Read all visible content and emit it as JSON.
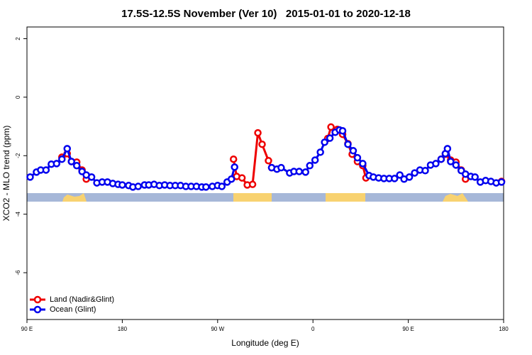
{
  "chart_data": {
    "type": "line",
    "title": "17.5S-12.5S November (Ver 10)   2015-01-01 to 2020-12-18",
    "x_label": "Longitude (deg E)",
    "y_label": "XCO2 - MLO trend (ppm)",
    "xlim": [
      90,
      540
    ],
    "xticks": [
      {
        "value": 90,
        "label": "90 E"
      },
      180,
      {
        "value": 270,
        "label": "90 W"
      },
      {
        "value": 360,
        "label": "0"
      },
      {
        "value": 450,
        "label": "90 E"
      },
      {
        "value": 540,
        "label": "180"
      }
    ],
    "ylim": [
      -7.6,
      2.4
    ],
    "yticks": [
      -6,
      -4,
      -2,
      0,
      2
    ],
    "legend": "bottom-left",
    "series": [
      {
        "name": "Land (Nadir&Glint)",
        "color": "#ee0000",
        "x": [
          123,
          128,
          132,
          137,
          142,
          146,
          200,
          285,
          288,
          293,
          298,
          303,
          308,
          312,
          318,
          321,
          340,
          374,
          377,
          383,
          388,
          393,
          397,
          402,
          407,
          410,
          450,
          481,
          485,
          490,
          495,
          500,
          504,
          520,
          538
        ],
        "values": [
          -2.05,
          -1.93,
          -2.2,
          -2.22,
          -2.49,
          -2.8,
          null,
          -2.12,
          -2.71,
          -2.76,
          -3.0,
          -2.98,
          -1.22,
          -1.61,
          -2.17,
          -2.41,
          null,
          -1.41,
          -1.02,
          -1.1,
          -1.27,
          -1.59,
          -1.95,
          -2.2,
          -2.34,
          -2.76,
          null,
          -2.12,
          -1.95,
          -2.15,
          -2.22,
          -2.49,
          -2.8,
          null,
          -2.88
        ]
      },
      {
        "name": "Ocean (Glint)",
        "color": "#0000ee",
        "x": [
          93,
          99,
          103,
          108,
          113,
          118,
          123,
          128,
          132,
          137,
          142,
          146,
          151,
          156,
          161,
          166,
          171,
          176,
          180,
          186,
          190,
          195,
          201,
          205,
          210,
          215,
          220,
          225,
          230,
          235,
          240,
          245,
          250,
          255,
          259,
          265,
          270,
          274,
          279,
          283,
          286,
          304,
          321,
          326,
          330,
          338,
          342,
          347,
          353,
          357,
          362,
          367,
          371,
          376,
          381,
          385,
          388,
          393,
          398,
          402,
          407,
          413,
          417,
          422,
          427,
          432,
          437,
          442,
          446,
          451,
          456,
          461,
          466,
          471,
          476,
          481,
          485,
          487,
          490,
          495,
          500,
          504,
          509,
          513,
          518,
          523,
          528,
          533,
          538
        ],
        "values": [
          -2.73,
          -2.56,
          -2.49,
          -2.49,
          -2.29,
          -2.27,
          -2.12,
          -1.76,
          -2.2,
          -2.34,
          -2.54,
          -2.66,
          -2.73,
          -2.93,
          -2.9,
          -2.9,
          -2.95,
          -2.98,
          -3.0,
          -3.02,
          -3.07,
          -3.05,
          -3.0,
          -3.0,
          -2.98,
          -3.02,
          -3.0,
          -3.02,
          -3.02,
          -3.02,
          -3.05,
          -3.05,
          -3.05,
          -3.07,
          -3.07,
          -3.05,
          -3.02,
          -3.05,
          -2.9,
          -2.8,
          -2.39,
          null,
          -2.41,
          -2.46,
          -2.41,
          -2.59,
          -2.54,
          -2.54,
          -2.56,
          -2.34,
          -2.15,
          -1.88,
          -1.54,
          -1.4,
          -1.2,
          -1.12,
          -1.15,
          -1.61,
          -1.83,
          -2.07,
          -2.27,
          -2.68,
          -2.73,
          -2.76,
          -2.78,
          -2.78,
          -2.78,
          -2.66,
          -2.8,
          -2.73,
          -2.59,
          -2.49,
          -2.51,
          -2.32,
          -2.27,
          -2.12,
          -1.93,
          -1.76,
          -2.2,
          -2.32,
          -2.51,
          -2.63,
          -2.71,
          -2.73,
          -2.9,
          -2.85,
          -2.88,
          -2.93,
          -2.9
        ]
      }
    ]
  }
}
